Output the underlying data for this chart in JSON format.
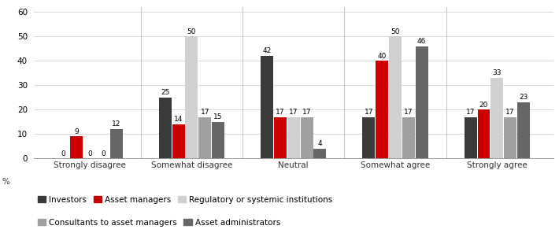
{
  "categories": [
    "Strongly disagree",
    "Somewhat disagree",
    "Neutral",
    "Somewhat agree",
    "Strongly agree"
  ],
  "series": {
    "Investors": [
      0,
      25,
      42,
      17,
      17
    ],
    "Asset managers": [
      9,
      14,
      17,
      40,
      20
    ],
    "Regulatory or systemic institutions": [
      0,
      50,
      17,
      50,
      33
    ],
    "Consultants to asset managers": [
      0,
      17,
      17,
      17,
      17
    ],
    "Asset administrators": [
      12,
      15,
      4,
      46,
      23
    ]
  },
  "colors": {
    "Investors": "#3a3a3a",
    "Asset managers": "#cc0000",
    "Regulatory or systemic institutions": "#d0d0d0",
    "Consultants to asset managers": "#a0a0a0",
    "Asset administrators": "#666666"
  },
  "ylim": [
    0,
    62
  ],
  "yticks": [
    0,
    10,
    20,
    30,
    40,
    50,
    60
  ],
  "bar_width": 0.13,
  "value_fontsize": 6.5,
  "axis_fontsize": 7.5,
  "legend_fontsize": 7.5,
  "legend_order": [
    "Investors",
    "Asset managers",
    "Regulatory or systemic institutions",
    "Consultants to asset managers",
    "Asset administrators"
  ],
  "ylabel_text": "in %"
}
